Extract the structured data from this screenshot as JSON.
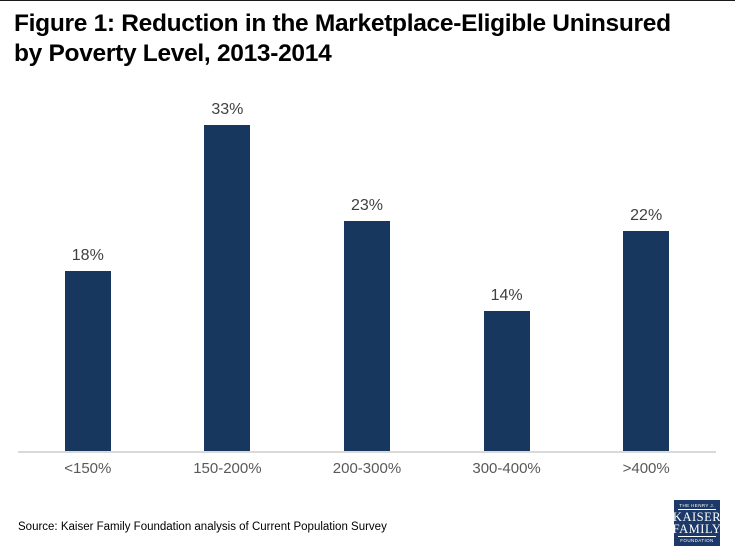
{
  "title": {
    "line1": "Figure 1: Reduction in the Marketplace-Eligible Uninsured",
    "line2": "by Poverty Level, 2013-2014"
  },
  "chart_data": {
    "type": "bar",
    "title": "Figure 1: Reduction in the Marketplace-Eligible Uninsured by Poverty Level, 2013-2014",
    "categories": [
      "<150%",
      "150-200%",
      "200-300%",
      "300-400%",
      ">400%"
    ],
    "values": [
      18,
      33,
      23,
      14,
      22
    ],
    "data_labels": [
      "18%",
      "33%",
      "23%",
      "14%",
      "22%"
    ],
    "xlabel": "",
    "ylabel": "",
    "ylim": [
      0,
      35
    ],
    "grid": false,
    "legend": false,
    "bar_color": "#17375E"
  },
  "colors": {
    "bar": "#17375E",
    "value_label": "#404040",
    "axis_label": "#595959",
    "axis_line": "#D9D9D9",
    "logo_background": "#1C3969",
    "logo_text": "#FFFFFF",
    "title_text": "#000000"
  },
  "footer": {
    "source": "Source: Kaiser Family Foundation analysis of Current Population Survey"
  },
  "logo": {
    "top": "THE HENRY J.",
    "line1": "KAISER",
    "line2": "FAMILY",
    "bottom": "FOUNDATION"
  }
}
